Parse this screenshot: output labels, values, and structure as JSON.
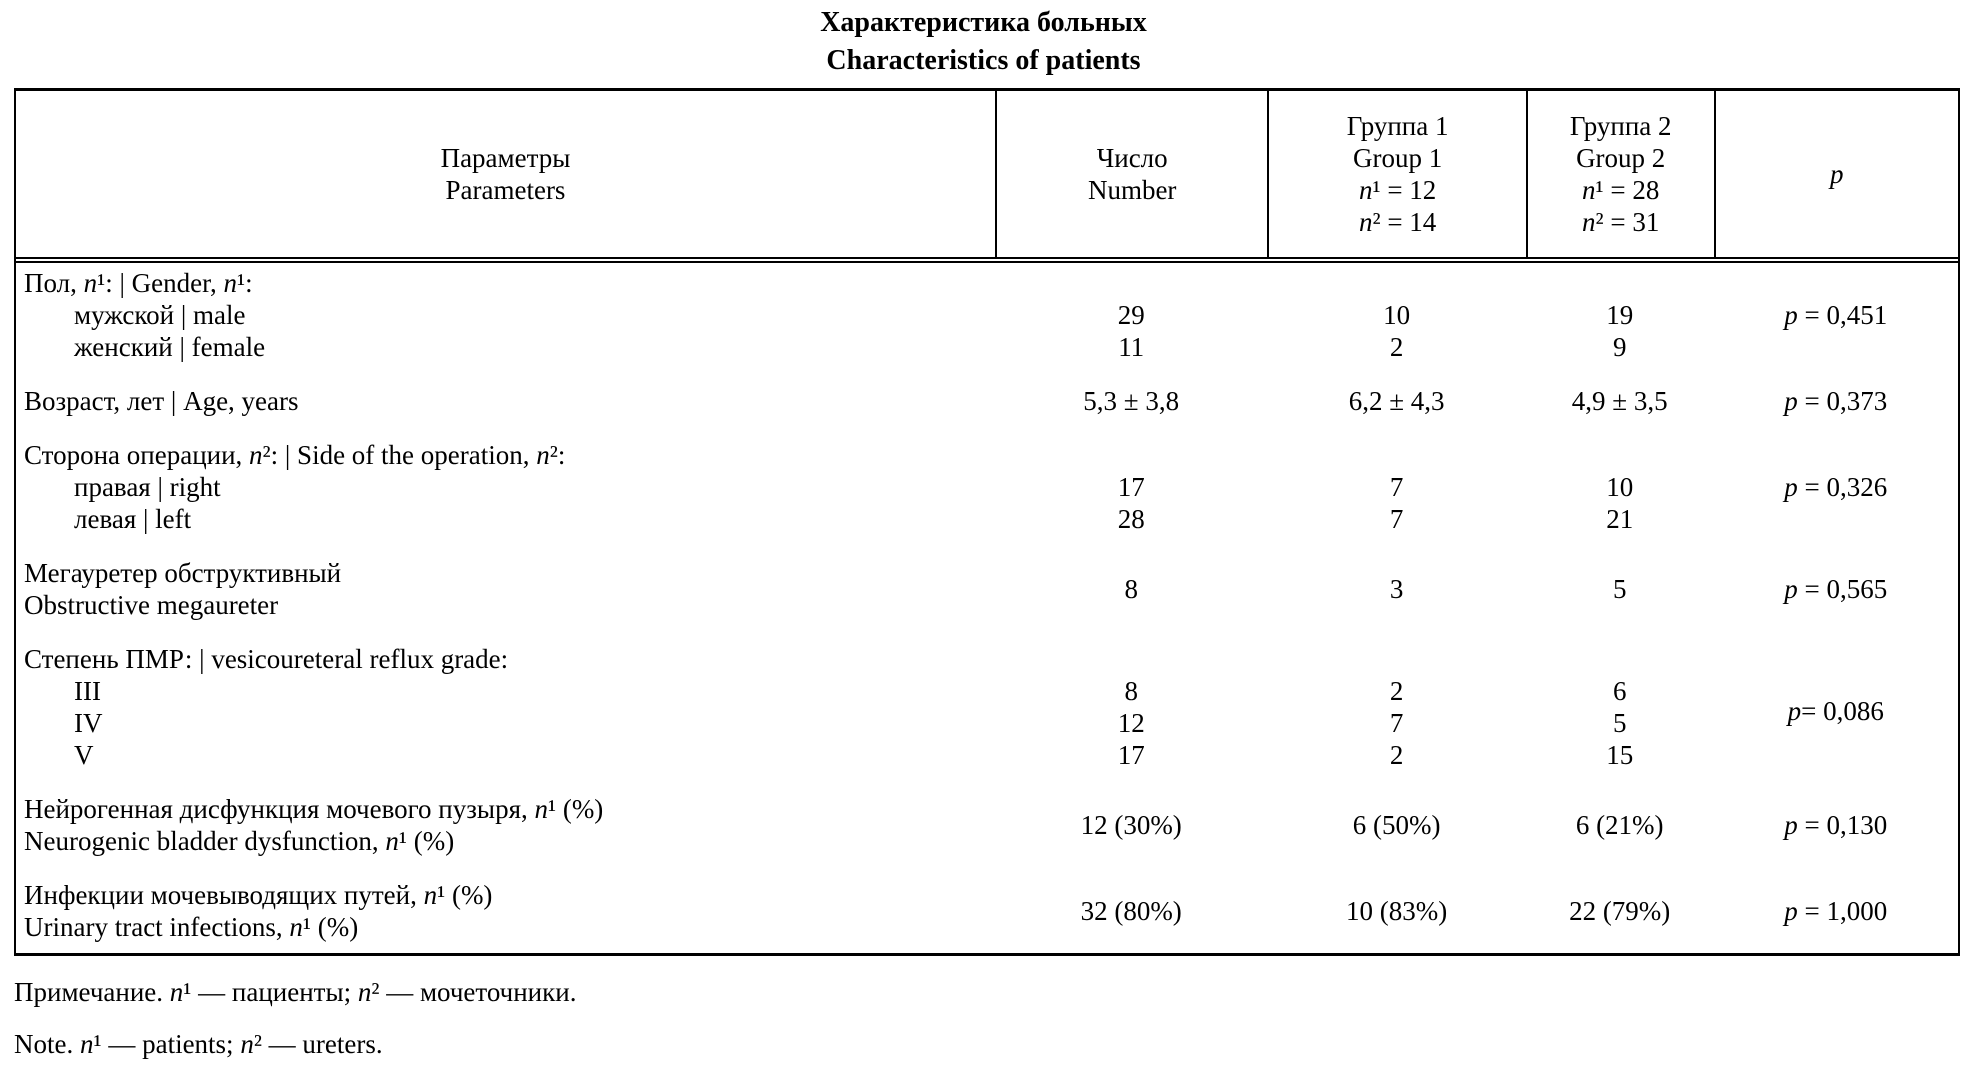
{
  "title": {
    "ru": "Характеристика больных",
    "en": "Characteristics of patients"
  },
  "table": {
    "header": {
      "parameters_ru": "Параметры",
      "parameters_en": "Parameters",
      "number_ru": "Число",
      "number_en": "Number",
      "group1_ru": "Группа 1",
      "group1_en": "Group 1",
      "group1_n1": "*n*¹ = 12",
      "group1_n2": "*n*² = 14",
      "group2_ru": "Группа 2",
      "group2_en": "Group 2",
      "group2_n1": "*n*¹ = 28",
      "group2_n2": "*n*² = 31",
      "p": "*p*"
    },
    "gender": {
      "header": "Пол, *n*¹: | Gender, *n*¹:",
      "male": {
        "label": "мужской | male",
        "number": "29",
        "group1": "10",
        "group2": "19",
        "p": "*p* = 0,451"
      },
      "female": {
        "label": "женский | female",
        "number": "11",
        "group1": "2",
        "group2": "9"
      }
    },
    "age": {
      "label": "Возраст, лет | Age, years",
      "number": "5,3 ± 3,8",
      "group1": "6,2 ± 4,3",
      "group2": "4,9 ± 3,5",
      "p": "*p* = 0,373"
    },
    "side": {
      "header": "Сторона операции, *n*²: | Side of the operation, *n*²:",
      "right": {
        "label": "правая | right",
        "number": "17",
        "group1": "7",
        "group2": "10",
        "p": "*p* = 0,326"
      },
      "left": {
        "label": "левая | left",
        "number": "28",
        "group1": "7",
        "group2": "21"
      }
    },
    "megaureter": {
      "label_ru": "Мегауретер обструктивный",
      "label_en": "Obstructive megaureter",
      "number": "8",
      "group1": "3",
      "group2": "5",
      "p": "*p* = 0,565"
    },
    "reflux": {
      "header": "Степень ПМР: | vesicoureteral reflux grade:",
      "grade3": {
        "label": "III",
        "number": "8",
        "group1": "2",
        "group2": "6"
      },
      "grade4": {
        "label": "IV",
        "number": "12",
        "group1": "7",
        "group2": "5"
      },
      "grade5": {
        "label": "V",
        "number": "17",
        "group1": "2",
        "group2": "15"
      },
      "p": "*p* = 0,086"
    },
    "neurogenic": {
      "label_ru": "Нейрогенная дисфункция мочевого пузыря, *n*¹ (%)",
      "label_en": "Neurogenic bladder dysfunction, *n*¹ (%)",
      "number": "12 (30%)",
      "group1": "6 (50%)",
      "group2": "6 (21%)",
      "p": "*p* = 0,130"
    },
    "uti": {
      "label_ru": "Инфекции мочевыводящих путей, *n*¹ (%)",
      "label_en": "Urinary tract infections, *n*¹ (%)",
      "number": "32 (80%)",
      "group1": "10 (83%)",
      "group2": "22 (79%)",
      "p": "*p* = 1,000"
    }
  },
  "notes": {
    "ru": "Примечание. *n*¹ — пациенты; *n*² — мочеточники.",
    "en": "Note. *n*¹ — patients; *n*² — ureters."
  }
}
